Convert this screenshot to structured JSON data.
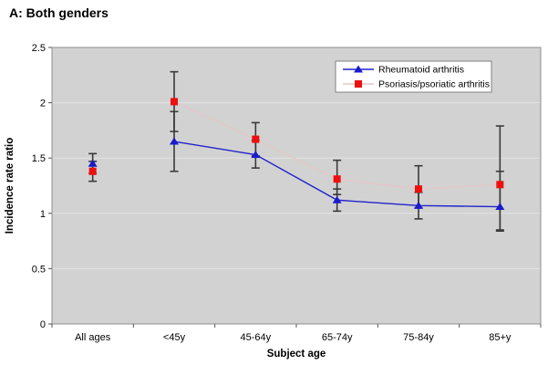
{
  "figure": {
    "title": "A: Both genders"
  },
  "chart_data": {
    "type": "line",
    "title": "A: Both genders",
    "xlabel": "Subject age",
    "ylabel": "Incidence rate ratio",
    "categories": [
      "All ages",
      "<45y",
      "45-64y",
      "65-74y",
      "75-84y",
      "85+y"
    ],
    "ylim": [
      0,
      2.5
    ],
    "yticks": [
      0,
      0.5,
      1,
      1.5,
      2,
      2.5
    ],
    "grid": true,
    "legend_position": "top-right",
    "note": "lines connect only the five age-group points; the All ages point is unconnected; vertical bars are 95% CI error bars",
    "connect_from_index": 1,
    "series": [
      {
        "name": "Rheumatoid arthritis",
        "marker": "triangle",
        "marker_color": "#1a1acc",
        "line_color": "#2222cc",
        "values": [
          1.45,
          1.65,
          1.53,
          1.12,
          1.07,
          1.06
        ],
        "ci_low": [
          1.36,
          1.38,
          1.41,
          1.02,
          0.95,
          0.85
        ],
        "ci_high": [
          1.54,
          1.92,
          1.66,
          1.22,
          1.19,
          1.38
        ]
      },
      {
        "name": "Psoriasis/psoriatic arthritis",
        "marker": "square",
        "marker_color": "#ee0f0f",
        "line_color": "#e4c7c7",
        "values": [
          1.38,
          2.01,
          1.67,
          1.31,
          1.22,
          1.26
        ],
        "ci_low": [
          1.29,
          1.74,
          1.52,
          1.17,
          1.05,
          0.84
        ],
        "ci_high": [
          1.47,
          2.28,
          1.82,
          1.48,
          1.43,
          1.79
        ]
      }
    ],
    "colors": {
      "plot_bg": "#d2d2d2",
      "gridline": "#e3e3e3",
      "plot_border": "#8f8f8f",
      "error_bar": "#3a3a3a",
      "tick": "#555555",
      "legend_bg": "#ffffff",
      "legend_border": "#808080"
    }
  }
}
